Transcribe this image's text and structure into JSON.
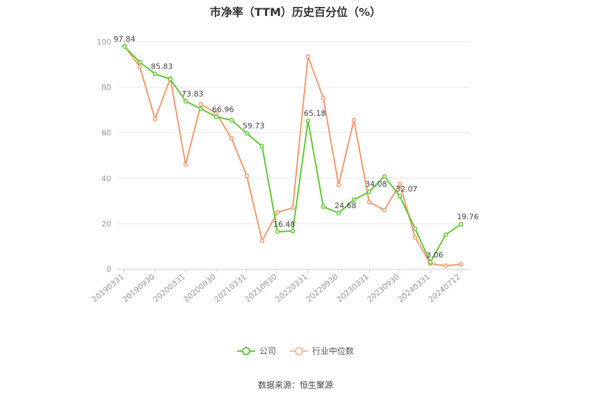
{
  "chart_data": {
    "type": "line",
    "title": "市净率（TTM）历史百分位（%）",
    "source": "数据来源：恒生聚源",
    "ylim": [
      0,
      100
    ],
    "yticks": [
      0,
      20,
      40,
      60,
      80,
      100
    ],
    "tick_labels": [
      "20190331",
      "20190930",
      "20200331",
      "20200930",
      "20210331",
      "20210930",
      "20220331",
      "20220930",
      "20230331",
      "20230930",
      "20240331",
      "20240712"
    ],
    "series": [
      {
        "name": "公司",
        "color": "#5cc82f",
        "values": [
          97.84,
          91.0,
          85.83,
          83.5,
          73.83,
          70.5,
          66.96,
          65.5,
          59.73,
          54.0,
          16.48,
          16.8,
          65.18,
          27.5,
          24.68,
          30.5,
          34.08,
          40.8,
          32.07,
          17.8,
          3.06,
          15.2,
          19.76
        ],
        "labels": [
          "97.84",
          "",
          "85.83",
          "",
          "73.83",
          "",
          "66.96",
          "",
          "59.73",
          "",
          "16.48",
          "",
          "65.18",
          "",
          "24.68",
          "",
          "34.08",
          "",
          "32.07",
          "",
          "3.06",
          "",
          "19.76"
        ]
      },
      {
        "name": "行业中位数",
        "color": "#f4976a",
        "values": [
          98.0,
          89.0,
          66.0,
          83.8,
          46.0,
          72.5,
          68.5,
          57.5,
          41.0,
          12.5,
          25.0,
          27.0,
          93.5,
          75.2,
          37.0,
          65.5,
          29.5,
          26.0,
          37.5,
          14.0,
          2.5,
          1.5,
          2.2
        ]
      }
    ]
  },
  "legend": {
    "company": "公司",
    "industry": "行业中位数"
  }
}
